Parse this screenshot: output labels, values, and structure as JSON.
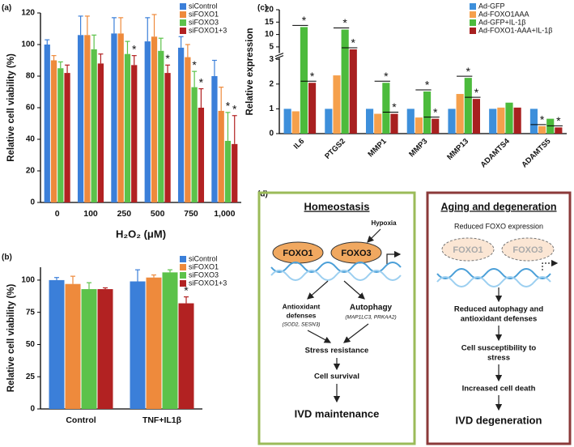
{
  "panels": [
    "(a)",
    "(b)",
    "(c)",
    "(d)"
  ],
  "chart_data": [
    {
      "type": "bar",
      "ylabel": "Relative cell viability (%)",
      "xlabel": "H₂O₂ (μM)",
      "categories": [
        "0",
        "100",
        "250",
        "500",
        "750",
        "1,000"
      ],
      "ylim": [
        0,
        120
      ],
      "yticks": [
        0,
        20,
        40,
        60,
        80,
        100,
        120
      ],
      "legend": "top-right",
      "series": [
        {
          "name": "siControl",
          "color": "#3b7fd9",
          "values": [
            100,
            106,
            107,
            102,
            98,
            80
          ],
          "errors": [
            3,
            12,
            10,
            15,
            7,
            10
          ],
          "significance": [
            null,
            null,
            null,
            null,
            null,
            null
          ]
        },
        {
          "name": "siFOXO1",
          "color": "#ee8a3c",
          "values": [
            90,
            106,
            107,
            105,
            92,
            58
          ],
          "errors": [
            3,
            12,
            10,
            14,
            8,
            15
          ],
          "significance": [
            null,
            null,
            null,
            null,
            null,
            null
          ]
        },
        {
          "name": "siFOXO3",
          "color": "#5cc24a",
          "values": [
            85,
            97,
            94,
            96,
            73,
            39
          ],
          "errors": [
            4,
            9,
            8,
            8,
            10,
            18
          ],
          "significance": [
            null,
            null,
            null,
            null,
            "*",
            "*"
          ]
        },
        {
          "name": "siFOXO1+3",
          "color": "#b22222",
          "values": [
            82,
            88,
            87,
            82,
            60,
            37
          ],
          "errors": [
            5,
            6,
            6,
            5,
            12,
            18
          ],
          "significance": [
            null,
            null,
            "*",
            "*",
            "*",
            "*"
          ]
        }
      ]
    },
    {
      "type": "bar",
      "ylabel": "Relative cell viability (%)",
      "categories": [
        "Control",
        "TNF+IL1β"
      ],
      "ylim": [
        0,
        110
      ],
      "yticks": [
        0,
        25,
        50,
        75,
        100
      ],
      "legend": "top-right",
      "series": [
        {
          "name": "siControl",
          "color": "#3b7fd9",
          "values": [
            100,
            99
          ],
          "errors": [
            2,
            9
          ],
          "significance": [
            null,
            null
          ]
        },
        {
          "name": "siFOXO1",
          "color": "#ee8a3c",
          "values": [
            97,
            102
          ],
          "errors": [
            6,
            2
          ],
          "significance": [
            null,
            null
          ]
        },
        {
          "name": "siFOXO3",
          "color": "#5cc24a",
          "values": [
            93,
            106
          ],
          "errors": [
            5,
            2
          ],
          "significance": [
            null,
            null
          ]
        },
        {
          "name": "siFOXO1+3",
          "color": "#b22222",
          "values": [
            93,
            82
          ],
          "errors": [
            1,
            5
          ],
          "significance": [
            null,
            "*"
          ]
        }
      ]
    },
    {
      "type": "bar",
      "ylabel": "Relative expression",
      "categories": [
        "IL6",
        "PTGS2",
        "MMP1",
        "MMP3",
        "MMP13",
        "ADAMTS4",
        "ADAMTS5"
      ],
      "ylim": [
        0,
        20
      ],
      "ybreak": 3,
      "yticks": [
        0,
        1,
        2,
        3,
        5,
        10,
        15,
        20
      ],
      "legend": "top-right",
      "series": [
        {
          "name": "Ad-GFP",
          "color": "#3d8fdb",
          "values": [
            1,
            1,
            1,
            1,
            1,
            1,
            1
          ],
          "significance": [
            null,
            null,
            null,
            null,
            null,
            null,
            null
          ]
        },
        {
          "name": "Ad-FOXO1AAA",
          "color": "#f5a04c",
          "values": [
            0.9,
            2.35,
            0.8,
            0.65,
            1.6,
            1.05,
            0.3
          ],
          "significance": [
            null,
            null,
            null,
            null,
            null,
            null,
            "*"
          ]
        },
        {
          "name": "Ad-GFP+IL-1β",
          "color": "#4cbb3c",
          "values": [
            13,
            12,
            2.05,
            1.7,
            2.25,
            1.25,
            0.6
          ],
          "significance": [
            "*",
            "*",
            "*",
            "*",
            "*",
            null,
            null
          ]
        },
        {
          "name": "Ad-FOXO1-AAA+IL-1β",
          "color": "#a82020",
          "values": [
            2.05,
            4,
            0.8,
            0.6,
            1.4,
            1.05,
            0.25
          ],
          "significance": [
            "*",
            "*",
            "*",
            "*",
            "*",
            null,
            "*"
          ]
        }
      ]
    }
  ],
  "diagram": {
    "homeostasis": {
      "title": "Homeostasis",
      "stimulus": "Hypoxia",
      "foxo1": "FOXO1",
      "foxo3": "FOXO3",
      "antioxidant": [
        "Antioxidant",
        "defenses"
      ],
      "antioxidant_genes": "(SOD2, SESN3)",
      "autophagy": "Autophagy",
      "autophagy_genes": "(MAP1LC3, PRKAA2)",
      "steps": [
        "Stress resistance",
        "Cell survival"
      ],
      "outcome": "IVD maintenance"
    },
    "degeneration": {
      "title": "Aging and degeneration",
      "subtitle": "Reduced FOXO expression",
      "foxo1": "FOXO1",
      "foxo3": "FOXO3",
      "steps": [
        [
          "Reduced autophagy and",
          "antioxidant defenses"
        ],
        [
          "Cell susceptibility to",
          "stress"
        ],
        [
          "Increased cell death"
        ]
      ],
      "outcome": "IVD degeneration"
    }
  }
}
